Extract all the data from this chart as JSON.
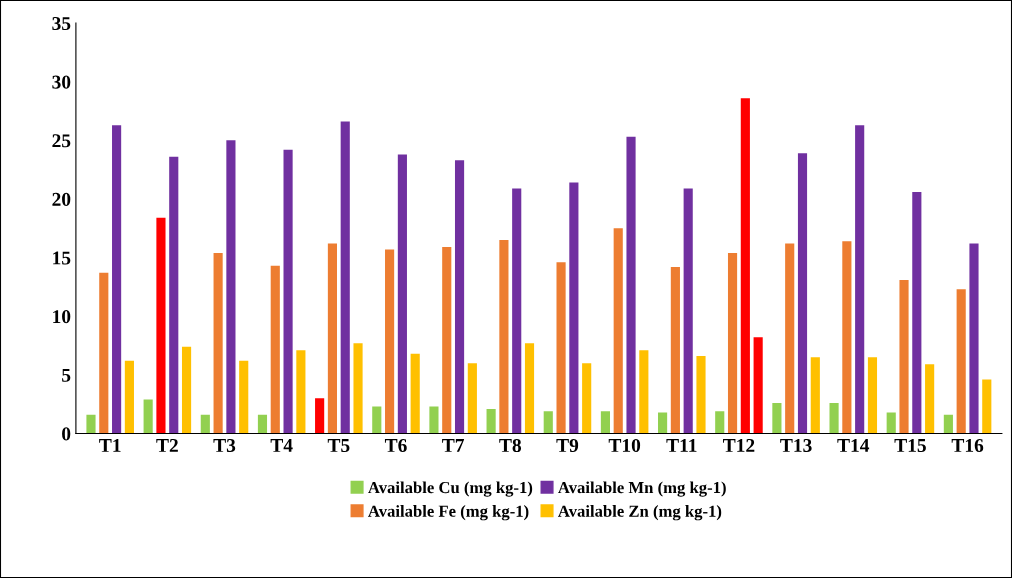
{
  "chart_data": {
    "type": "bar",
    "categories": [
      "T1",
      "T2",
      "T3",
      "T4",
      "T5",
      "T6",
      "T7",
      "T8",
      "T9",
      "T10",
      "T11",
      "T12",
      "T13",
      "T14",
      "T15",
      "T16"
    ],
    "series": [
      {
        "name": "Available Cu (mg kg-1)",
        "color": "#92d050",
        "colors": [
          "#92d050",
          "#92d050",
          "#92d050",
          "#92d050",
          "#ff0000",
          "#92d050",
          "#92d050",
          "#92d050",
          "#92d050",
          "#92d050",
          "#92d050",
          "#92d050",
          "#92d050",
          "#92d050",
          "#92d050",
          "#92d050"
        ],
        "values": [
          1.6,
          2.9,
          1.6,
          1.6,
          3.0,
          2.3,
          2.3,
          2.1,
          1.9,
          1.9,
          1.8,
          1.9,
          2.6,
          2.6,
          1.8,
          1.6
        ]
      },
      {
        "name": "Available Fe (mg kg-1)",
        "color": "#ed7d31",
        "colors": [
          "#ed7d31",
          "#ff0000",
          "#ed7d31",
          "#ed7d31",
          "#ed7d31",
          "#ed7d31",
          "#ed7d31",
          "#ed7d31",
          "#ed7d31",
          "#ed7d31",
          "#ed7d31",
          "#ed7d31",
          "#ed7d31",
          "#ed7d31",
          "#ed7d31",
          "#ed7d31"
        ],
        "values": [
          13.7,
          18.4,
          15.4,
          14.3,
          16.2,
          15.7,
          15.9,
          16.5,
          14.6,
          17.5,
          14.2,
          15.4,
          16.2,
          16.4,
          13.1,
          12.3
        ]
      },
      {
        "name": "Available Mn (mg kg-1)",
        "color": "#7030a0",
        "colors": [
          "#7030a0",
          "#7030a0",
          "#7030a0",
          "#7030a0",
          "#7030a0",
          "#7030a0",
          "#7030a0",
          "#7030a0",
          "#7030a0",
          "#7030a0",
          "#7030a0",
          "#ff0000",
          "#7030a0",
          "#7030a0",
          "#7030a0",
          "#7030a0"
        ],
        "values": [
          26.3,
          23.6,
          25.0,
          24.2,
          26.6,
          23.8,
          23.3,
          20.9,
          21.4,
          25.3,
          20.9,
          28.6,
          23.9,
          26.3,
          20.6,
          16.2
        ]
      },
      {
        "name": "Available Zn (mg kg-1)",
        "color": "#ffc000",
        "colors": [
          "#ffc000",
          "#ffc000",
          "#ffc000",
          "#ffc000",
          "#ffc000",
          "#ffc000",
          "#ffc000",
          "#ffc000",
          "#ffc000",
          "#ffc000",
          "#ffc000",
          "#ff0000",
          "#ffc000",
          "#ffc000",
          "#ffc000",
          "#ffc000"
        ],
        "values": [
          6.2,
          7.4,
          6.2,
          7.1,
          7.7,
          6.8,
          6.0,
          7.7,
          6.0,
          7.1,
          6.6,
          8.2,
          6.5,
          6.5,
          5.9,
          4.6
        ]
      }
    ],
    "ylim": [
      0,
      35
    ],
    "yticks": [
      0,
      5,
      10,
      15,
      20,
      25,
      30,
      35
    ],
    "grid": false,
    "legend": "bottom"
  }
}
